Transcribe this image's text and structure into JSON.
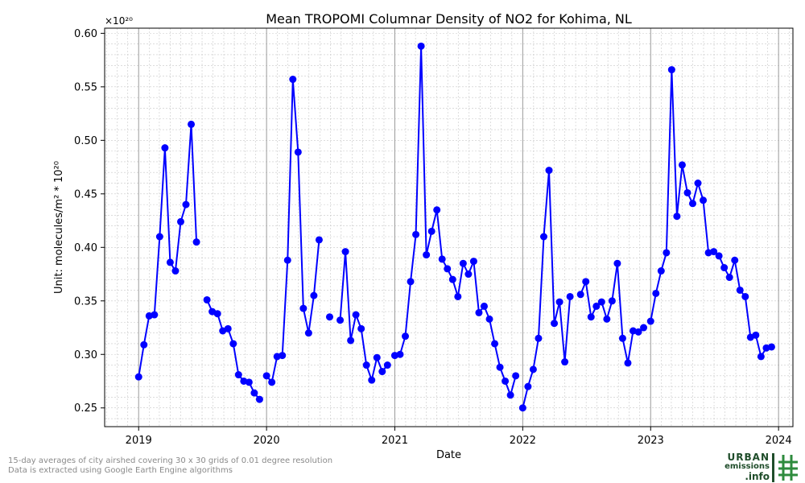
{
  "chart_data": {
    "type": "line",
    "title": "Mean TROPOMI Columnar Density of NO2 for Kohima, NL",
    "xlabel": "Date",
    "ylabel": "Unit: molecules/m² * 10²⁰",
    "offset_label": "×10²⁰",
    "xlim": [
      "2018-09-26",
      "2024-02-11"
    ],
    "ylim": [
      0.2325,
      0.6048
    ],
    "x_ticks": [
      "2019-01-01",
      "2020-01-01",
      "2021-01-01",
      "2022-01-01",
      "2023-01-01",
      "2024-01-01"
    ],
    "x_tick_labels": [
      "2019",
      "2020",
      "2021",
      "2022",
      "2023",
      "2024"
    ],
    "y_ticks": [
      0.25,
      0.3,
      0.35,
      0.4,
      0.45,
      0.5,
      0.55,
      0.6
    ],
    "y_tick_labels": [
      "0.25",
      "0.30",
      "0.35",
      "0.40",
      "0.45",
      "0.50",
      "0.55",
      "0.60"
    ],
    "grid": true,
    "series": [
      {
        "color": "#0000ff",
        "x": [
          "2019-01-01",
          "2019-01-16",
          "2019-01-31",
          "2019-02-15",
          "2019-03-02",
          "2019-03-17",
          "2019-04-01",
          "2019-04-16",
          "2019-05-01",
          "2019-05-16",
          "2019-05-31",
          "2019-06-15",
          "2019-06-30",
          "2019-07-15",
          "2019-07-30",
          "2019-08-14",
          "2019-08-29",
          "2019-09-13",
          "2019-09-28",
          "2019-10-13",
          "2019-10-28",
          "2019-11-12",
          "2019-11-27",
          "2019-12-12",
          "2019-12-27",
          "2020-01-01",
          "2020-01-16",
          "2020-01-31",
          "2020-02-15",
          "2020-03-01",
          "2020-03-16",
          "2020-03-31",
          "2020-04-15",
          "2020-04-30",
          "2020-05-15",
          "2020-05-30",
          "2020-06-14",
          "2020-06-29",
          "2020-07-14",
          "2020-07-29",
          "2020-08-13",
          "2020-08-28",
          "2020-09-12",
          "2020-09-27",
          "2020-10-12",
          "2020-10-27",
          "2020-11-11",
          "2020-11-26",
          "2020-12-11",
          "2020-12-26",
          "2021-01-01",
          "2021-01-16",
          "2021-01-31",
          "2021-02-15",
          "2021-03-02",
          "2021-03-17",
          "2021-04-01",
          "2021-04-16",
          "2021-05-01",
          "2021-05-16",
          "2021-05-31",
          "2021-06-15",
          "2021-06-30",
          "2021-07-15",
          "2021-07-30",
          "2021-08-14",
          "2021-08-29",
          "2021-09-13",
          "2021-09-28",
          "2021-10-13",
          "2021-10-28",
          "2021-11-12",
          "2021-11-27",
          "2021-12-12",
          "2021-12-27",
          "2022-01-01",
          "2022-01-16",
          "2022-01-31",
          "2022-02-15",
          "2022-03-02",
          "2022-03-17",
          "2022-04-01",
          "2022-04-16",
          "2022-05-01",
          "2022-05-16",
          "2022-05-31",
          "2022-06-15",
          "2022-06-30",
          "2022-07-15",
          "2022-07-30",
          "2022-08-14",
          "2022-08-29",
          "2022-09-13",
          "2022-09-28",
          "2022-10-13",
          "2022-10-28",
          "2022-11-12",
          "2022-11-27",
          "2022-12-12",
          "2022-12-27",
          "2023-01-01",
          "2023-01-16",
          "2023-01-31",
          "2023-02-15",
          "2023-03-02",
          "2023-03-17",
          "2023-04-01",
          "2023-04-16",
          "2023-05-01",
          "2023-05-16",
          "2023-05-31",
          "2023-06-15",
          "2023-06-30",
          "2023-07-15",
          "2023-07-30",
          "2023-08-14",
          "2023-08-29",
          "2023-09-13",
          "2023-09-28",
          "2023-10-13",
          "2023-10-28",
          "2023-11-12",
          "2023-11-27",
          "2023-12-12"
        ],
        "values": [
          0.279,
          0.309,
          0.336,
          0.337,
          0.41,
          0.493,
          0.386,
          0.378,
          0.424,
          0.44,
          0.515,
          0.405,
          null,
          0.351,
          0.34,
          0.338,
          0.322,
          0.324,
          0.31,
          0.281,
          0.275,
          0.274,
          0.264,
          0.258,
          null,
          0.28,
          0.274,
          0.298,
          0.299,
          0.388,
          0.557,
          0.489,
          0.343,
          0.32,
          0.355,
          0.407,
          null,
          0.335,
          null,
          0.332,
          0.396,
          0.313,
          0.337,
          0.324,
          0.29,
          0.276,
          0.297,
          0.284,
          0.29,
          null,
          0.299,
          0.3,
          0.317,
          0.368,
          0.412,
          0.588,
          0.393,
          0.415,
          0.435,
          0.389,
          0.38,
          0.37,
          0.354,
          0.385,
          0.375,
          0.387,
          0.339,
          0.345,
          0.333,
          0.31,
          0.288,
          0.275,
          0.262,
          0.28,
          null,
          0.25,
          0.27,
          0.286,
          0.315,
          0.41,
          0.472,
          0.329,
          0.349,
          0.293,
          0.354,
          null,
          0.356,
          0.368,
          0.335,
          0.345,
          0.349,
          0.333,
          0.35,
          0.385,
          0.315,
          0.292,
          0.322,
          0.321,
          0.325,
          null,
          0.331,
          0.357,
          0.378,
          0.395,
          0.566,
          0.429,
          0.477,
          0.451,
          0.441,
          0.46,
          0.444,
          0.395,
          0.396,
          0.392,
          0.381,
          0.372,
          0.388,
          0.36,
          0.354,
          0.316,
          0.318,
          0.298,
          0.306,
          0.307
        ]
      }
    ]
  },
  "footnote": {
    "line1": "15-day averages of city airshed covering 30 x 30 grids of 0.01 degree resolution",
    "line2": "Data is extracted using Google Earth Engine algorithms"
  },
  "logo": {
    "word1": "URBAN",
    "word2": "emissions",
    "word3": ".info",
    "color_dark": "#1f4d2a",
    "color_green": "#2e8b3d"
  }
}
